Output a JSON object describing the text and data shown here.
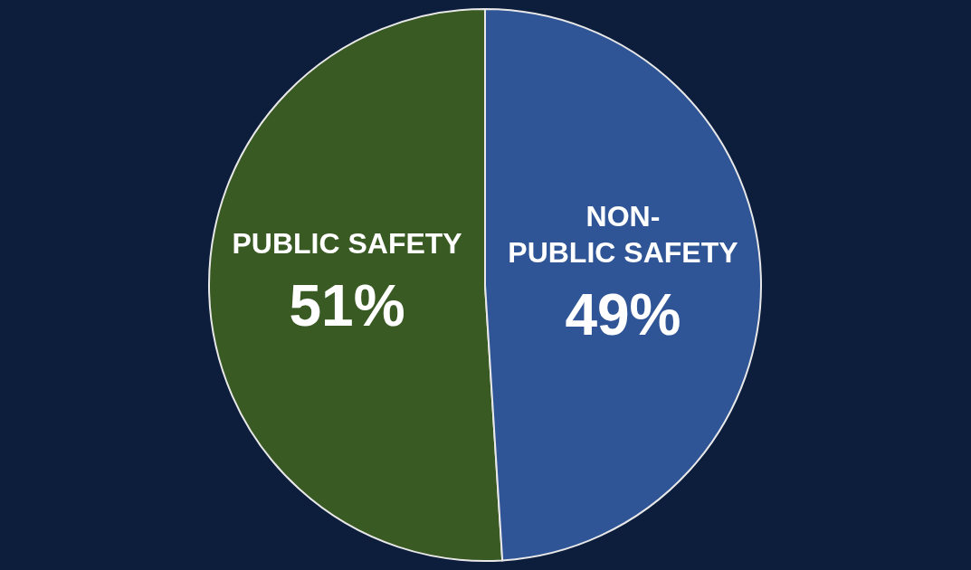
{
  "chart_data": {
    "type": "pie",
    "categories": [
      "PUBLIC SAFETY",
      "NON-PUBLIC SAFETY"
    ],
    "values": [
      51,
      49
    ],
    "colors": [
      "#3a5a24",
      "#2f5597"
    ],
    "value_labels": [
      "51%",
      "49%"
    ]
  }
}
